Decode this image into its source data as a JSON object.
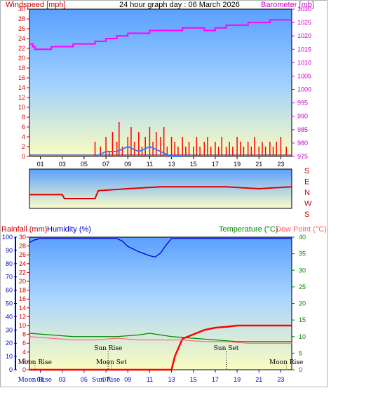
{
  "chart_data": [
    {
      "type": "line",
      "title": "24 hour graph day : 06 March 2026",
      "ylabel_left": "Windspeed [mph]",
      "ylabel_right": "Barometer [mb]",
      "y_left_ticks": [
        "30",
        "28",
        "26",
        "24",
        "22",
        "20",
        "18",
        "16",
        "14",
        "12",
        "10",
        "8",
        "6",
        "4",
        "2",
        "0"
      ],
      "ylim_left": [
        0,
        30
      ],
      "y_right_ticks": [
        "1030",
        "1025",
        "1020",
        "1015",
        "1010",
        "1005",
        "1000",
        "995",
        "990",
        "985",
        "980",
        "975"
      ],
      "ylim_right": [
        975,
        1030
      ],
      "x_ticks": [
        "01",
        "03",
        "05",
        "07",
        "09",
        "11",
        "13",
        "15",
        "17",
        "19",
        "21",
        "23"
      ],
      "xlim": [
        0,
        24
      ],
      "series": [
        {
          "name": "Barometer",
          "color": "#ff00ff",
          "values": [
            [
              0,
              1017
            ],
            [
              0.3,
              1016
            ],
            [
              0.5,
              1015
            ],
            [
              2,
              1016
            ],
            [
              4,
              1017
            ],
            [
              5,
              1017
            ],
            [
              6,
              1018
            ],
            [
              7,
              1019
            ],
            [
              8,
              1020
            ],
            [
              9,
              1021
            ],
            [
              10,
              1021
            ],
            [
              11,
              1022
            ],
            [
              12,
              1022
            ],
            [
              13,
              1022
            ],
            [
              14,
              1023
            ],
            [
              15,
              1023
            ],
            [
              16,
              1022
            ],
            [
              17,
              1023
            ],
            [
              18,
              1024
            ],
            [
              19,
              1024
            ],
            [
              20,
              1025
            ],
            [
              21,
              1025
            ],
            [
              22,
              1026
            ],
            [
              23,
              1026
            ],
            [
              24,
              1026
            ]
          ]
        },
        {
          "name": "Gust",
          "color": "#ff0000",
          "values": [
            [
              6,
              3
            ],
            [
              6.5,
              2
            ],
            [
              7,
              4
            ],
            [
              7.3,
              1
            ],
            [
              7.6,
              5
            ],
            [
              8,
              3
            ],
            [
              8.2,
              7
            ],
            [
              8.5,
              2
            ],
            [
              9,
              4
            ],
            [
              9.3,
              6
            ],
            [
              9.6,
              3
            ],
            [
              10,
              5
            ],
            [
              10.3,
              2
            ],
            [
              10.6,
              4
            ],
            [
              11,
              6
            ],
            [
              11.3,
              3
            ],
            [
              11.6,
              5
            ],
            [
              12,
              4
            ],
            [
              12.3,
              6
            ],
            [
              12.6,
              2
            ],
            [
              13,
              4
            ],
            [
              13.3,
              3
            ],
            [
              13.6,
              2
            ],
            [
              14,
              4
            ],
            [
              14.3,
              2
            ],
            [
              14.6,
              3
            ],
            [
              15,
              2
            ],
            [
              15.3,
              4
            ],
            [
              15.6,
              2
            ],
            [
              16,
              3
            ],
            [
              16.3,
              4
            ],
            [
              16.6,
              2
            ],
            [
              17,
              3
            ],
            [
              17.3,
              2
            ],
            [
              17.6,
              4
            ],
            [
              18,
              2
            ],
            [
              18.3,
              3
            ],
            [
              18.6,
              2
            ],
            [
              19,
              4
            ],
            [
              19.3,
              3
            ],
            [
              19.6,
              2
            ],
            [
              20,
              3
            ],
            [
              20.3,
              2
            ],
            [
              20.6,
              4
            ],
            [
              21,
              2
            ],
            [
              21.3,
              3
            ],
            [
              21.6,
              2
            ],
            [
              22,
              3
            ],
            [
              22.3,
              2
            ],
            [
              22.6,
              3
            ],
            [
              23,
              4
            ],
            [
              23.5,
              2
            ],
            [
              24,
              1
            ]
          ]
        },
        {
          "name": "Wind",
          "color": "#3080ff",
          "values": [
            [
              6,
              0
            ],
            [
              7,
              1
            ],
            [
              8,
              1
            ],
            [
              9,
              2
            ],
            [
              10,
              1
            ],
            [
              11,
              2
            ],
            [
              12,
              1
            ],
            [
              13,
              0
            ],
            [
              14,
              0
            ]
          ]
        }
      ]
    },
    {
      "type": "line",
      "title": "",
      "y_right_labels": [
        "S",
        "E",
        "N",
        "W",
        "S"
      ],
      "series": [
        {
          "name": "Wind direction",
          "color": "#dd0000",
          "values": [
            [
              0,
              0.35
            ],
            [
              3,
              0.35
            ],
            [
              3.2,
              0.25
            ],
            [
              6,
              0.25
            ],
            [
              6.3,
              0.45
            ],
            [
              9,
              0.5
            ],
            [
              12,
              0.55
            ],
            [
              15,
              0.55
            ],
            [
              18,
              0.55
            ],
            [
              21,
              0.5
            ],
            [
              24,
              0.55
            ]
          ]
        }
      ]
    },
    {
      "type": "line",
      "title": "",
      "ylabel_left": "Rainfall (mm)",
      "ylabel_left2": "Humidity (%)",
      "ylabel_right": "Temperature (°C)",
      "ylabel_right2": "Dew Point (°C)",
      "y_rain_ticks": [
        "30",
        "28",
        "26",
        "24",
        "22",
        "20",
        "18",
        "16",
        "14",
        "12",
        "10",
        "8",
        "6",
        "4",
        "2",
        "0"
      ],
      "ylim_rain": [
        0,
        30
      ],
      "y_hum_ticks": [
        "100",
        "90",
        "80",
        "70",
        "60",
        "50",
        "40",
        "30",
        "20",
        "10",
        "0"
      ],
      "ylim_hum": [
        0,
        100
      ],
      "y_temp_ticks": [
        "40",
        "35",
        "30",
        "25",
        "20",
        "15",
        "10",
        "5",
        "0"
      ],
      "ylim_temp": [
        0,
        40
      ],
      "x_ticks": [
        "01",
        "03",
        "05",
        "07",
        "09",
        "11",
        "13",
        "15",
        "17",
        "19",
        "21",
        "23"
      ],
      "xlim": [
        0,
        24
      ],
      "annotations": [
        {
          "text": "Moon Rise",
          "x": 0.5,
          "row": "upper"
        },
        {
          "text": "Moon Set",
          "x": 7.5,
          "row": "upper"
        },
        {
          "text": "Sun Rise",
          "x": 7.2,
          "row": "mid"
        },
        {
          "text": "Sun Set",
          "x": 18,
          "row": "mid"
        },
        {
          "text": "Moon Rise",
          "x": 23.5,
          "row": "upper"
        },
        {
          "text": "Moon Rise",
          "x": 0.5,
          "row": "bottom"
        },
        {
          "text": "Sun Rise",
          "x": 7,
          "row": "bottom"
        }
      ],
      "series": [
        {
          "name": "Humidity",
          "color": "#0000cc",
          "values": [
            [
              0,
              96
            ],
            [
              0.5,
              98
            ],
            [
              1,
              99
            ],
            [
              8,
              99
            ],
            [
              8.5,
              97
            ],
            [
              9,
              93
            ],
            [
              10,
              89
            ],
            [
              11,
              86
            ],
            [
              11.5,
              85
            ],
            [
              12,
              88
            ],
            [
              12.5,
              94
            ],
            [
              13,
              99
            ],
            [
              24,
              99
            ]
          ]
        },
        {
          "name": "Rainfall",
          "color": "#ff0000",
          "values": [
            [
              0,
              0
            ],
            [
              13,
              0
            ],
            [
              13.3,
              3
            ],
            [
              14,
              7
            ],
            [
              15,
              8
            ],
            [
              16,
              9
            ],
            [
              17,
              9.5
            ],
            [
              18,
              9.7
            ],
            [
              19,
              10
            ],
            [
              24,
              10
            ]
          ]
        },
        {
          "name": "Temperature",
          "color": "#008800",
          "values": [
            [
              0,
              11
            ],
            [
              2,
              10.5
            ],
            [
              4,
              10
            ],
            [
              6,
              10
            ],
            [
              8,
              10
            ],
            [
              10,
              10.5
            ],
            [
              11,
              11
            ],
            [
              12,
              10.5
            ],
            [
              13,
              10
            ],
            [
              15,
              9.5
            ],
            [
              17,
              9
            ],
            [
              19,
              8.5
            ],
            [
              21,
              8.5
            ],
            [
              24,
              8.5
            ]
          ]
        },
        {
          "name": "Dew Point",
          "color": "#ff7070",
          "values": [
            [
              0,
              10
            ],
            [
              2,
              9.5
            ],
            [
              4,
              9
            ],
            [
              6,
              9
            ],
            [
              8,
              9.5
            ],
            [
              10,
              9
            ],
            [
              12,
              9
            ],
            [
              14,
              9
            ],
            [
              16,
              8.5
            ],
            [
              18,
              8.5
            ],
            [
              20,
              8
            ],
            [
              24,
              8
            ]
          ]
        }
      ]
    }
  ]
}
